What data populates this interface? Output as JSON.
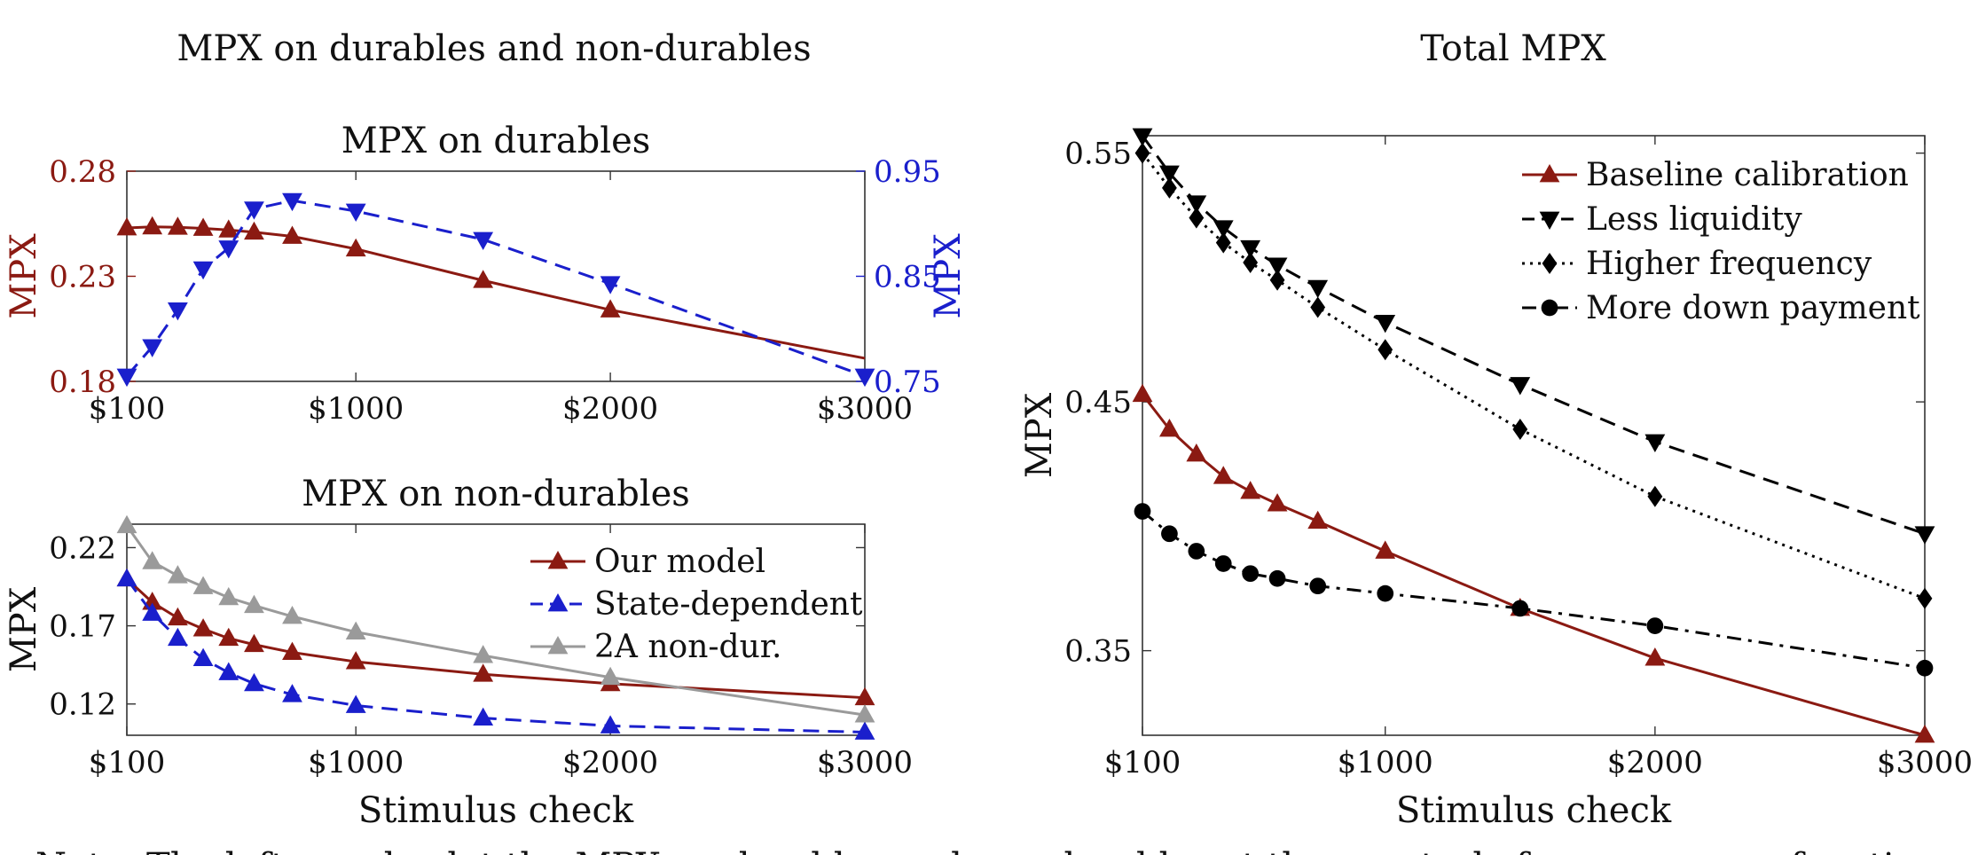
{
  "group_titles": {
    "left": "MPX on durables and non-durables",
    "right": "Total MPX"
  },
  "note_text": "Note: The left panels plot the MPX on durables and non-durables at the quarterly frequency as a function",
  "colors": {
    "red": "#8b1a12",
    "blue": "#1a1fcc",
    "gray": "#9a9a9a",
    "black": "#000000"
  },
  "chart_data": [
    {
      "id": "durables",
      "type": "line",
      "title": "MPX on durables",
      "xlabel": "",
      "ylabel": "MPX",
      "ylabel_right": "MPX",
      "xlim": [
        100,
        3000
      ],
      "x_ticks": [
        100,
        1000,
        2000,
        3000
      ],
      "x_tick_labels": [
        "$100",
        "$1000",
        "$2000",
        "$3000"
      ],
      "ylim": [
        0.18,
        0.28
      ],
      "y_ticks": [
        0.18,
        0.23,
        0.28
      ],
      "y_tick_labels": [
        "0.18",
        "0.23",
        "0.28"
      ],
      "ylim_right": [
        0.75,
        0.95
      ],
      "y_ticks_right": [
        0.75,
        0.85,
        0.95
      ],
      "y_tick_labels_right": [
        "0.75",
        "0.85",
        "0.95"
      ],
      "grid": false,
      "series": [
        {
          "axis": "left",
          "color": "red",
          "dash": "solid",
          "marker": "triangle-up",
          "x": [
            100,
            200,
            300,
            400,
            500,
            600,
            750,
            1000,
            1500,
            2000,
            3000
          ],
          "y": [
            0.253,
            0.2535,
            0.2533,
            0.2528,
            0.252,
            0.251,
            0.249,
            0.243,
            0.228,
            0.214,
            0.191
          ],
          "markers_at": [
            100,
            200,
            300,
            400,
            500,
            600,
            750,
            1000,
            1500,
            2000
          ]
        },
        {
          "axis": "right",
          "color": "blue",
          "dash": "dashed",
          "marker": "triangle-down",
          "x": [
            100,
            200,
            300,
            400,
            500,
            600,
            750,
            1000,
            1500,
            2000,
            3000
          ],
          "y": [
            0.755,
            0.783,
            0.818,
            0.857,
            0.877,
            0.914,
            0.922,
            0.912,
            0.885,
            0.843,
            0.755
          ],
          "markers_at": [
            100,
            200,
            300,
            400,
            500,
            600,
            750,
            1000,
            1500,
            2000,
            3000
          ]
        }
      ]
    },
    {
      "id": "nondurables",
      "type": "line",
      "title": "MPX on non-durables",
      "xlabel": "Stimulus check",
      "ylabel": "MPX",
      "xlim": [
        100,
        3000
      ],
      "x_ticks": [
        100,
        1000,
        2000,
        3000
      ],
      "x_tick_labels": [
        "$100",
        "$1000",
        "$2000",
        "$3000"
      ],
      "ylim": [
        0.1,
        0.235
      ],
      "y_ticks": [
        0.12,
        0.17,
        0.22
      ],
      "y_tick_labels": [
        "0.12",
        "0.17",
        "0.22"
      ],
      "grid": false,
      "legend": "top-right",
      "series": [
        {
          "name": "Our model",
          "color": "red",
          "dash": "solid",
          "marker": "triangle-up",
          "x": [
            100,
            200,
            300,
            400,
            500,
            600,
            750,
            1000,
            1500,
            2000,
            3000
          ],
          "y": [
            0.2,
            0.185,
            0.175,
            0.168,
            0.162,
            0.158,
            0.153,
            0.147,
            0.139,
            0.133,
            0.124
          ]
        },
        {
          "name": "State-dependent",
          "color": "blue",
          "dash": "dashed",
          "marker": "triangle-up",
          "x": [
            100,
            200,
            300,
            400,
            500,
            600,
            750,
            1000,
            1500,
            2000,
            3000
          ],
          "y": [
            0.2,
            0.178,
            0.162,
            0.149,
            0.14,
            0.133,
            0.126,
            0.119,
            0.111,
            0.106,
            0.102
          ]
        },
        {
          "name": "2A non-dur.",
          "color": "gray",
          "dash": "solid",
          "marker": "triangle-up",
          "x": [
            100,
            200,
            300,
            400,
            500,
            600,
            750,
            1000,
            1500,
            2000,
            3000
          ],
          "y": [
            0.234,
            0.211,
            0.202,
            0.195,
            0.188,
            0.183,
            0.176,
            0.166,
            0.151,
            0.137,
            0.113
          ]
        }
      ]
    },
    {
      "id": "total",
      "type": "line",
      "title": "",
      "xlabel": "Stimulus check",
      "ylabel": "MPX",
      "xlim": [
        100,
        3000
      ],
      "x_ticks": [
        100,
        1000,
        2000,
        3000
      ],
      "x_tick_labels": [
        "$100",
        "$1000",
        "$2000",
        "$3000"
      ],
      "ylim": [
        0.316,
        0.557
      ],
      "y_ticks": [
        0.35,
        0.45,
        0.55
      ],
      "y_tick_labels": [
        "0.35",
        "0.45",
        "0.55"
      ],
      "grid": false,
      "legend": "top-right",
      "series": [
        {
          "name": "Baseline calibration",
          "color": "red",
          "dash": "solid",
          "marker": "triangle-up",
          "x": [
            100,
            200,
            300,
            400,
            500,
            600,
            750,
            1000,
            1500,
            2000,
            3000
          ],
          "y": [
            0.453,
            0.439,
            0.429,
            0.42,
            0.414,
            0.409,
            0.402,
            0.39,
            0.367,
            0.347,
            0.316
          ]
        },
        {
          "name": "Less liquidity",
          "color": "black",
          "dash": "dashed",
          "marker": "triangle-down",
          "x": [
            100,
            200,
            300,
            400,
            500,
            600,
            750,
            1000,
            1500,
            2000,
            3000
          ],
          "y": [
            0.557,
            0.542,
            0.53,
            0.52,
            0.512,
            0.505,
            0.496,
            0.482,
            0.457,
            0.434,
            0.397
          ]
        },
        {
          "name": "Higher frequency",
          "color": "black",
          "dash": "dotted",
          "marker": "diamond",
          "x": [
            100,
            200,
            300,
            400,
            500,
            600,
            750,
            1000,
            1500,
            2000,
            3000
          ],
          "y": [
            0.55,
            0.536,
            0.524,
            0.514,
            0.506,
            0.499,
            0.488,
            0.471,
            0.439,
            0.412,
            0.371
          ]
        },
        {
          "name": "More down payment",
          "color": "black",
          "dash": "dashdot",
          "marker": "circle",
          "x": [
            100,
            200,
            300,
            400,
            500,
            600,
            750,
            1000,
            1500,
            2000,
            3000
          ],
          "y": [
            0.406,
            0.397,
            0.39,
            0.385,
            0.381,
            0.379,
            0.376,
            0.373,
            0.367,
            0.36,
            0.343
          ]
        }
      ]
    }
  ]
}
